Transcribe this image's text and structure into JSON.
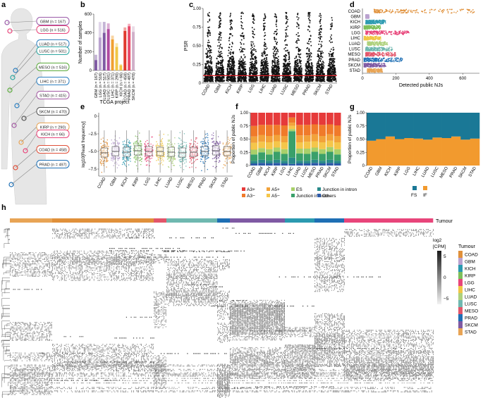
{
  "panel_letters": [
    "a",
    "b",
    "c",
    "d",
    "e",
    "f",
    "g",
    "h"
  ],
  "colors": {
    "COAD": "#e0903a",
    "GBM": "#b9a2cf",
    "KICH": "#2b9ab0",
    "KIRP": "#7ebf5a",
    "LGG": "#e8457a",
    "LIHC": "#f0c645",
    "LUAD": "#aed17c",
    "LUSC": "#6fb8b0",
    "MESO": "#e2566a",
    "PRAD": "#1e6fb4",
    "SKCM": "#7f5aa3",
    "STAD": "#e8a455",
    "red_line": "#d61f26",
    "fs": "#1a7896",
    "if": "#f29a2e"
  },
  "body_map": {
    "labels": [
      "GBM (n = 167)",
      "LGG (n = 516)",
      "LUAD (n = 517)",
      "LUSC (n = 501)",
      "MESO (n = 516)",
      "LIHC (n = 371)",
      "STAD (n = 415)",
      "SKCM (n = 470)",
      "KIRP (n = 290)",
      "KICH (n = 66)",
      "COAD (n = 458)",
      "PRAD (n = 497)"
    ],
    "circle_colors": [
      "#9a5aa8",
      "#e8457a",
      "#2e7fbf",
      "#2ea6a0",
      "#5aaa3a",
      "#2d7fbf",
      "#a35aa3",
      "#555555",
      "#e8a455",
      "#e8457a",
      "#e0503a",
      "#1e6fb4"
    ]
  },
  "chart_data": [
    {
      "id": "b",
      "type": "bar",
      "ylabel": "Number of samples",
      "xlabel": "TCGA project",
      "yticks": [
        "0",
        "200",
        "400",
        "600"
      ],
      "ylim": [
        0,
        600
      ],
      "categories": [
        "GBM (n = 167)",
        "LGG (n = 516)",
        "LUAD (n = 517)",
        "LUSC (n = 501)",
        "LIHC (n = 371)",
        "KIRP (n = 290)",
        "KICH (n = 66)",
        "COAD (n = 458)",
        "PRAD (n = 497)",
        "SKCM (n = 470)"
      ],
      "values": [
        167,
        516,
        517,
        501,
        371,
        290,
        66,
        458,
        497,
        470
      ],
      "light_values": [
        110,
        350,
        400,
        440,
        330,
        250,
        55,
        420,
        470,
        410
      ],
      "bar_colors": [
        "#7f5aa3",
        "#b9a2cf",
        "#7f5aa3",
        "#b04aa0",
        "#f0a030",
        "#f0c645",
        "#f4c542",
        "#e03a2f",
        "#e84a6a",
        "#d0b0c8"
      ]
    },
    {
      "id": "c",
      "type": "scatter",
      "ylabel": "PSR",
      "yticks": [
        "0",
        "0.25",
        "0.50",
        "0.75",
        "1.00"
      ],
      "ylim": [
        0,
        1
      ],
      "categories": [
        "COAD",
        "GBM",
        "KICH",
        "KIRP",
        "LGG",
        "LIHC",
        "LUAD",
        "LUSC",
        "MESO",
        "PRAD",
        "SKCM",
        "STAD"
      ],
      "threshold": 0.1
    },
    {
      "id": "d",
      "type": "scatter",
      "xlabel": "Detected public NJs",
      "xticks": [
        "0",
        "200",
        "400",
        "600"
      ],
      "xlim": [
        0,
        700
      ],
      "categories": [
        "COAD",
        "GBM",
        "KICH",
        "KIRP",
        "LGG",
        "LIHC",
        "LUAD",
        "LUSC",
        "MESO",
        "PRAD",
        "SKCM",
        "STAD"
      ],
      "ranges": [
        [
          70,
          670
        ],
        [
          20,
          40
        ],
        [
          20,
          140
        ],
        [
          10,
          110
        ],
        [
          20,
          280
        ],
        [
          10,
          110
        ],
        [
          30,
          150
        ],
        [
          20,
          180
        ],
        [
          20,
          200
        ],
        [
          10,
          240
        ],
        [
          10,
          140
        ],
        [
          30,
          120
        ]
      ]
    },
    {
      "id": "e",
      "type": "box",
      "ylabel": "log10[Read frequency]",
      "yticks": [
        "−7.5",
        "−5.0",
        "−2.5",
        "0"
      ],
      "ylim": [
        -8.5,
        0.5
      ],
      "categories": [
        "COAD",
        "GBM",
        "KICH",
        "KIRP",
        "LGG",
        "LIHC",
        "LUAD",
        "LUSC",
        "MESO",
        "PRAD",
        "SKCM",
        "STAD"
      ],
      "medians": [
        -5.2,
        -5.0,
        -5.1,
        -4.9,
        -5.0,
        -5.0,
        -5.1,
        -5.2,
        -5.1,
        -5.0,
        -4.9,
        -5.0
      ],
      "q1": [
        -5.8,
        -5.6,
        -5.7,
        -5.5,
        -5.6,
        -5.6,
        -5.7,
        -5.8,
        -5.7,
        -5.6,
        -5.5,
        -5.6
      ],
      "q3": [
        -4.5,
        -4.3,
        -4.4,
        -4.2,
        -4.3,
        -4.4,
        -4.4,
        -4.5,
        -4.4,
        -4.3,
        -4.2,
        -4.3
      ]
    },
    {
      "id": "f",
      "type": "stacked_bar",
      "ylabel": "Proportion of public NJs",
      "yticks": [
        "0",
        "0.25",
        "0.50",
        "0.75",
        "1.00"
      ],
      "ylim": [
        0,
        1
      ],
      "categories": [
        "COAD",
        "GBM",
        "KICH",
        "KIRP",
        "LGG",
        "LIHC",
        "LUAD",
        "LUSC",
        "MESO",
        "PRAD",
        "SKCM",
        "STAD"
      ],
      "legend": [
        "A3+",
        "A3−",
        "A5+",
        "A5−",
        "ES",
        "Junction in exon",
        "Junction in intron",
        "Others"
      ],
      "legend_colors": [
        "#e63a3a",
        "#f07a2a",
        "#f2a23a",
        "#f5c64a",
        "#a8d06a",
        "#3aa06a",
        "#2a8a8a",
        "#2e5aa8"
      ],
      "series": [
        {
          "name": "Others",
          "values": [
            0.04,
            0.05,
            0.04,
            0.05,
            0.04,
            0.03,
            0.04,
            0.04,
            0.05,
            0.04,
            0.05,
            0.04
          ]
        },
        {
          "name": "Junction in intron",
          "values": [
            0.05,
            0.06,
            0.05,
            0.06,
            0.05,
            0.12,
            0.05,
            0.05,
            0.06,
            0.05,
            0.06,
            0.05
          ]
        },
        {
          "name": "Junction in exon",
          "values": [
            0.12,
            0.14,
            0.12,
            0.15,
            0.13,
            0.5,
            0.14,
            0.13,
            0.15,
            0.13,
            0.15,
            0.12
          ]
        },
        {
          "name": "ES",
          "values": [
            0.09,
            0.08,
            0.1,
            0.08,
            0.09,
            0.04,
            0.09,
            0.1,
            0.08,
            0.09,
            0.09,
            0.1
          ]
        },
        {
          "name": "A5−",
          "values": [
            0.13,
            0.12,
            0.13,
            0.12,
            0.13,
            0.06,
            0.12,
            0.13,
            0.12,
            0.13,
            0.12,
            0.13
          ]
        },
        {
          "name": "A5+",
          "values": [
            0.12,
            0.13,
            0.12,
            0.12,
            0.12,
            0.06,
            0.13,
            0.12,
            0.13,
            0.12,
            0.12,
            0.12
          ]
        },
        {
          "name": "A3−",
          "values": [
            0.2,
            0.19,
            0.21,
            0.19,
            0.2,
            0.1,
            0.2,
            0.2,
            0.19,
            0.21,
            0.19,
            0.2
          ]
        },
        {
          "name": "A3+",
          "values": [
            0.25,
            0.23,
            0.23,
            0.23,
            0.24,
            0.09,
            0.23,
            0.23,
            0.22,
            0.23,
            0.22,
            0.24
          ]
        }
      ]
    },
    {
      "id": "g",
      "type": "stacked_bar",
      "ylabel": "Proportion of public NJs",
      "yticks": [
        "0",
        "0.25",
        "0.50",
        "0.75",
        "1.00"
      ],
      "ylim": [
        0,
        1
      ],
      "categories": [
        "COAD",
        "GBM",
        "KICH",
        "KIRP",
        "LGG",
        "LIHC",
        "LUAD",
        "LUSC",
        "MESO",
        "PRAD",
        "SKCM",
        "STAD"
      ],
      "legend": [
        "FS",
        "IF"
      ],
      "series": [
        {
          "name": "IF",
          "values": [
            0.47,
            0.5,
            0.55,
            0.5,
            0.52,
            0.51,
            0.49,
            0.53,
            0.52,
            0.55,
            0.49,
            0.51
          ]
        },
        {
          "name": "FS",
          "values": [
            0.53,
            0.5,
            0.45,
            0.5,
            0.48,
            0.49,
            0.51,
            0.47,
            0.48,
            0.45,
            0.51,
            0.49
          ]
        }
      ]
    },
    {
      "id": "h",
      "type": "heatmap",
      "track_label": "Tumour",
      "legend_title": "Tumour",
      "scale_title": "log2\n[CPM]",
      "scale_ticks": [
        "5",
        "0",
        "−5"
      ],
      "categories": [
        "COAD",
        "GBM",
        "KICH",
        "KIRP",
        "LGG",
        "LIHC",
        "LUAD",
        "LUSC",
        "MESO",
        "PRAD",
        "SKCM",
        "STAD"
      ],
      "track_segments": [
        {
          "t": "STAD",
          "w": 0.1
        },
        {
          "t": "COAD",
          "w": 0.24
        },
        {
          "t": "MESO",
          "w": 0.03
        },
        {
          "t": "LUSC",
          "w": 0.12
        },
        {
          "t": "PRAD",
          "w": 0.03
        },
        {
          "t": "SKCM",
          "w": 0.13
        },
        {
          "t": "KICH",
          "w": 0.07
        },
        {
          "t": "PRAD",
          "w": 0.07
        },
        {
          "t": "LGG",
          "w": 0.21
        }
      ]
    }
  ]
}
